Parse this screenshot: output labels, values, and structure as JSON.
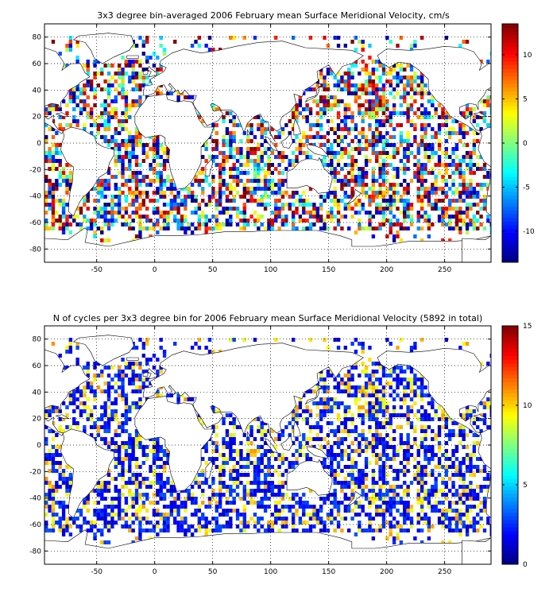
{
  "chart_data": [
    {
      "type": "heatmap",
      "title": "3x3 degree bin-averaged 2006 February mean Surface Meridional Velocity, cm/s",
      "xlim": [
        -95,
        290
      ],
      "ylim": [
        -90,
        90
      ],
      "xticks": [
        -50,
        0,
        50,
        100,
        150,
        200,
        250
      ],
      "yticks": [
        -80,
        -60,
        -40,
        -20,
        0,
        20,
        40,
        60,
        80
      ],
      "bin_size_deg": 3,
      "grid": true,
      "colormap": "jet",
      "colorbar": {
        "min": -13.5,
        "max": 13.5,
        "ticks": [
          -10,
          -5,
          0,
          5,
          10
        ]
      },
      "value_range": [
        -13.5,
        13.5
      ]
    },
    {
      "type": "heatmap",
      "title": "N of cycles per 3x3 degree bin for 2006 February mean Surface Meridional Velocity (5892 in total)",
      "xlim": [
        -95,
        290
      ],
      "ylim": [
        -90,
        90
      ],
      "xticks": [
        -50,
        0,
        50,
        100,
        150,
        200,
        250
      ],
      "yticks": [
        -80,
        -60,
        -40,
        -20,
        0,
        20,
        40,
        60,
        80
      ],
      "bin_size_deg": 3,
      "grid": true,
      "colormap": "jet",
      "colorbar": {
        "min": 0,
        "max": 15,
        "ticks": [
          0,
          5,
          10,
          15
        ]
      },
      "value_range": [
        0,
        15
      ]
    }
  ]
}
